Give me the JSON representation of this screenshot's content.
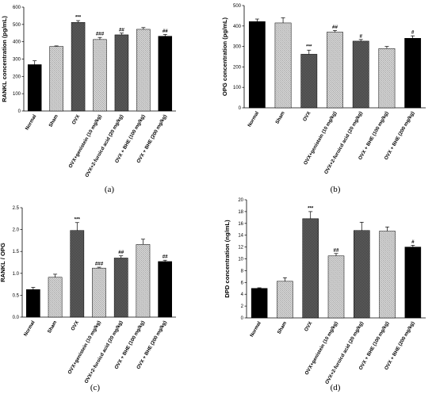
{
  "colors": {
    "bar_fill_solid": "#000000",
    "bar_fill_dense": "#444444",
    "bar_pattern_light": "#cfcfcf",
    "axis": "#000000",
    "background": "#ffffff"
  },
  "chart_data": [
    {
      "panel_label": "(a)",
      "type": "bar",
      "categories": [
        "Normal",
        "Sham",
        "OVX",
        "OVX+genistein (10 mg/kg)",
        "OVX+2-furoicd acid (20 mg/kg)",
        "OVX + BHE (100 mg/kg)",
        "OVX + BHE (200 mg/kg)"
      ],
      "values": [
        268,
        373,
        512,
        413,
        440,
        472,
        432
      ],
      "errors": [
        22,
        3,
        10,
        12,
        10,
        10,
        10
      ],
      "significance": [
        "",
        "",
        "***",
        "###",
        "##",
        "",
        "##"
      ],
      "patterns": [
        "solid",
        "hatch",
        "dense",
        "hatch",
        "dense",
        "hatch",
        "solid"
      ],
      "ylabel": "RANKL concentration (pg/mL)",
      "ylim": [
        0,
        600
      ],
      "yticks": [
        "0",
        "100",
        "200",
        "300",
        "400",
        "500",
        "600"
      ]
    },
    {
      "panel_label": "(b)",
      "type": "bar",
      "categories": [
        "Normal",
        "Sham",
        "OVX",
        "OVX+genistein (10 mg/kg)",
        "OVX+2-furoicd acid (20 mg/kg)",
        "OVX + BHE (100 mg/kg)",
        "OVX + BHE (200 mg/kg)"
      ],
      "values": [
        422,
        415,
        262,
        370,
        326,
        290,
        340
      ],
      "errors": [
        12,
        25,
        20,
        8,
        8,
        10,
        12
      ],
      "significance": [
        "",
        "",
        "***",
        "##",
        "#",
        "",
        "#"
      ],
      "patterns": [
        "solid",
        "hatch",
        "dense",
        "hatch",
        "dense",
        "hatch",
        "solid"
      ],
      "ylabel": "OPG concentration (pg/mL)",
      "ylim": [
        0,
        500
      ],
      "yticks": [
        "0",
        "100",
        "200",
        "300",
        "400",
        "500"
      ]
    },
    {
      "panel_label": "(c)",
      "type": "bar",
      "categories": [
        "Normal",
        "Sham",
        "OVX",
        "OVX+genistein (10 mg/kg)",
        "OVX+2-furoicd acid (20 mg/kg)",
        "OVX + BHE (100 mg/kg)",
        "OVX + BHE (200 mg/kg)"
      ],
      "values": [
        0.63,
        0.91,
        1.98,
        1.12,
        1.35,
        1.66,
        1.27
      ],
      "errors": [
        0.05,
        0.07,
        0.18,
        0.02,
        0.05,
        0.12,
        0.03
      ],
      "significance": [
        "",
        "",
        "***",
        "###",
        "##",
        "",
        "##"
      ],
      "patterns": [
        "solid",
        "hatch",
        "dense",
        "hatch",
        "dense",
        "hatch",
        "solid"
      ],
      "ylabel": "RANKL / OPG",
      "ylim": [
        0,
        2.5
      ],
      "yticks": [
        "0.0",
        "0.5",
        "1.0",
        "1.5",
        "2.0",
        "2.5"
      ]
    },
    {
      "panel_label": "(d)",
      "type": "bar",
      "categories": [
        "Normal",
        "Sham",
        "OVX",
        "OVX+genistein (10 mg/kg)",
        "OVX+2-furoicd acid (20 mg/kg)",
        "OVX + BHE (100 mg/kg)",
        "OVX + BHE (200 mg/kg)"
      ],
      "values": [
        5.0,
        6.2,
        16.8,
        10.5,
        14.8,
        14.7,
        12.0
      ],
      "errors": [
        0.1,
        0.6,
        1.2,
        0.4,
        1.4,
        0.7,
        0.3
      ],
      "significance": [
        "",
        "",
        "***",
        "##",
        "",
        "",
        "#"
      ],
      "patterns": [
        "solid",
        "hatch",
        "dense",
        "hatch",
        "dense",
        "hatch",
        "solid"
      ],
      "ylabel": "DPD concentration (ng/mL)",
      "ylim": [
        0,
        20
      ],
      "yticks": [
        "0",
        "2",
        "4",
        "6",
        "8",
        "10",
        "12",
        "14",
        "16",
        "18",
        "20"
      ]
    }
  ]
}
